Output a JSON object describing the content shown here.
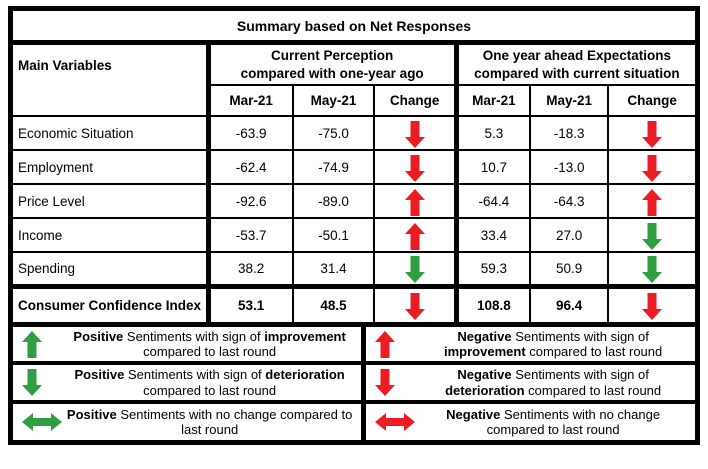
{
  "colors": {
    "red": "#ec1c24",
    "green": "#2f9e41",
    "border": "#000000"
  },
  "title": "Summary based on Net Responses",
  "table": {
    "main_header": "Main Variables",
    "groups": [
      {
        "line1": "Current Perception",
        "line2": "compared with one-year ago"
      },
      {
        "line1": "One year ahead Expectations",
        "line2": "compared with current situation"
      }
    ],
    "sub_headers": [
      "Mar-21",
      "May-21",
      "Change"
    ],
    "rows": [
      {
        "label": "Economic Situation",
        "bold": false,
        "current": {
          "mar": "-63.9",
          "may": "-75.0",
          "change": "down-red"
        },
        "expectation": {
          "mar": "5.3",
          "may": "-18.3",
          "change": "down-red"
        }
      },
      {
        "label": "Employment",
        "bold": false,
        "current": {
          "mar": "-62.4",
          "may": "-74.9",
          "change": "down-red"
        },
        "expectation": {
          "mar": "10.7",
          "may": "-13.0",
          "change": "down-red"
        }
      },
      {
        "label": "Price Level",
        "bold": false,
        "current": {
          "mar": "-92.6",
          "may": "-89.0",
          "change": "up-red"
        },
        "expectation": {
          "mar": "-64.4",
          "may": "-64.3",
          "change": "up-red"
        }
      },
      {
        "label": "Income",
        "bold": false,
        "current": {
          "mar": "-53.7",
          "may": "-50.1",
          "change": "up-red"
        },
        "expectation": {
          "mar": "33.4",
          "may": "27.0",
          "change": "down-green"
        }
      },
      {
        "label": "Spending",
        "bold": false,
        "current": {
          "mar": "38.2",
          "may": "31.4",
          "change": "down-green"
        },
        "expectation": {
          "mar": "59.3",
          "may": "50.9",
          "change": "down-green"
        }
      },
      {
        "label": "Consumer Confidence Index",
        "bold": true,
        "current": {
          "mar": "53.1",
          "may": "48.5",
          "change": "down-red"
        },
        "expectation": {
          "mar": "108.8",
          "may": "96.4",
          "change": "down-red"
        }
      }
    ]
  },
  "legend": [
    {
      "arrow": "up-green",
      "segments": [
        {
          "text": "Positive",
          "bold": true
        },
        {
          "text": " Sentiments with sign of ",
          "bold": false
        },
        {
          "text": "improvement",
          "bold": true
        },
        {
          "text": " compared to last round",
          "bold": false
        }
      ]
    },
    {
      "arrow": "up-red",
      "segments": [
        {
          "text": "Negative",
          "bold": true
        },
        {
          "text": " Sentiments with sign of ",
          "bold": false
        },
        {
          "text": "improvement",
          "bold": true
        },
        {
          "text": " compared to last round",
          "bold": false
        }
      ]
    },
    {
      "arrow": "down-green",
      "segments": [
        {
          "text": "Positive",
          "bold": true
        },
        {
          "text": " Sentiments with sign of ",
          "bold": false
        },
        {
          "text": "deterioration",
          "bold": true
        },
        {
          "text": " compared to last round",
          "bold": false
        }
      ]
    },
    {
      "arrow": "down-red",
      "segments": [
        {
          "text": "Negative",
          "bold": true
        },
        {
          "text": " Sentiments with sign of ",
          "bold": false
        },
        {
          "text": "deterioration",
          "bold": true
        },
        {
          "text": " compared to last round",
          "bold": false
        }
      ]
    },
    {
      "arrow": "lr-green",
      "segments": [
        {
          "text": "Positive",
          "bold": true
        },
        {
          "text": " Sentiments with no change compared to last round",
          "bold": false
        }
      ]
    },
    {
      "arrow": "lr-red",
      "segments": [
        {
          "text": "Negative",
          "bold": true
        },
        {
          "text": " Sentiments with no change compared to last round",
          "bold": false
        }
      ]
    }
  ],
  "chart_data": {
    "type": "table",
    "title": "Summary based on Net Responses",
    "column_groups": [
      {
        "label": "Current Perception compared with one-year ago",
        "columns": [
          "Mar-21",
          "May-21",
          "Change"
        ]
      },
      {
        "label": "One year ahead Expectations compared with current situation",
        "columns": [
          "Mar-21",
          "May-21",
          "Change"
        ]
      }
    ],
    "columns": [
      "Main Variables",
      "Perception Mar-21",
      "Perception May-21",
      "Perception Change",
      "Expectations Mar-21",
      "Expectations May-21",
      "Expectations Change"
    ],
    "rows": [
      [
        "Economic Situation",
        -63.9,
        -75.0,
        "red-down",
        5.3,
        -18.3,
        "red-down"
      ],
      [
        "Employment",
        -62.4,
        -74.9,
        "red-down",
        10.7,
        -13.0,
        "red-down"
      ],
      [
        "Price Level",
        -92.6,
        -89.0,
        "red-up",
        -64.4,
        -64.3,
        "red-up"
      ],
      [
        "Income",
        -53.7,
        -50.1,
        "red-up",
        33.4,
        27.0,
        "green-down"
      ],
      [
        "Spending",
        38.2,
        31.4,
        "green-down",
        59.3,
        50.9,
        "green-down"
      ],
      [
        "Consumer Confidence Index",
        53.1,
        48.5,
        "red-down",
        108.8,
        96.4,
        "red-down"
      ]
    ],
    "legend": [
      "green-up: Positive Sentiments with sign of improvement compared to last round",
      "red-up: Negative Sentiments with sign of improvement compared to last round",
      "green-down: Positive Sentiments with sign of deterioration compared to last round",
      "red-down: Negative Sentiments with sign of deterioration compared to last round",
      "green-leftright: Positive Sentiments with no change compared to last round",
      "red-leftright: Negative Sentiments with no change compared to last round"
    ]
  }
}
